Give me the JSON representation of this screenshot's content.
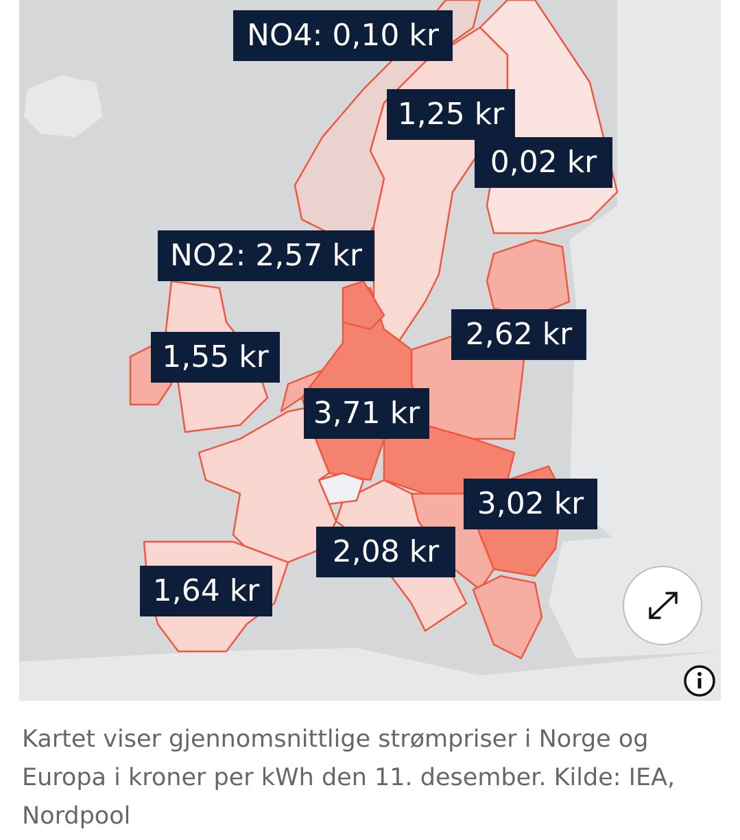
{
  "map": {
    "labels": [
      {
        "text": "NO4: 0,10 kr"
      },
      {
        "text": "1,25 kr"
      },
      {
        "text": "0,02 kr"
      },
      {
        "text": "NO2: 2,57 kr"
      },
      {
        "text": "1,55 kr"
      },
      {
        "text": "2,62 kr"
      },
      {
        "text": "3,71 kr"
      },
      {
        "text": "3,02 kr"
      },
      {
        "text": "2,08 kr"
      },
      {
        "text": "1,64 kr"
      }
    ]
  },
  "caption": "Kartet viser gjennomsnittlige strømpriser i Norge og Europa i kroner per kWh den 11. desember. Kilde: IEA, Nordpool"
}
